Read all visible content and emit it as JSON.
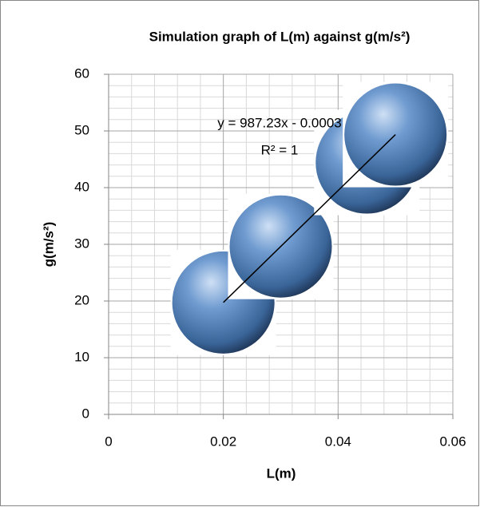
{
  "chart_data": {
    "type": "scatter",
    "title": "Simulation graph of L(m) against g(m/s²)",
    "x_label": "L(m)",
    "y_label": "g(m/s²)",
    "x": [
      0.02,
      0.03,
      0.045,
      0.05
    ],
    "values": [
      19.74,
      29.62,
      44.43,
      49.36
    ],
    "color": "#4f81bd",
    "xlim": [
      0,
      0.06
    ],
    "xticks": [
      0,
      0.02,
      0.04,
      0.06
    ],
    "ylim": [
      0,
      60
    ],
    "yticks": [
      0,
      10,
      20,
      30,
      40,
      50,
      60
    ],
    "grid": true,
    "minor_grid": true,
    "trendline": {
      "slope": 987.23,
      "intercept": -0.0003,
      "equation": "y = 987.23x - 0.0003",
      "r_squared": "R² = 1"
    }
  }
}
